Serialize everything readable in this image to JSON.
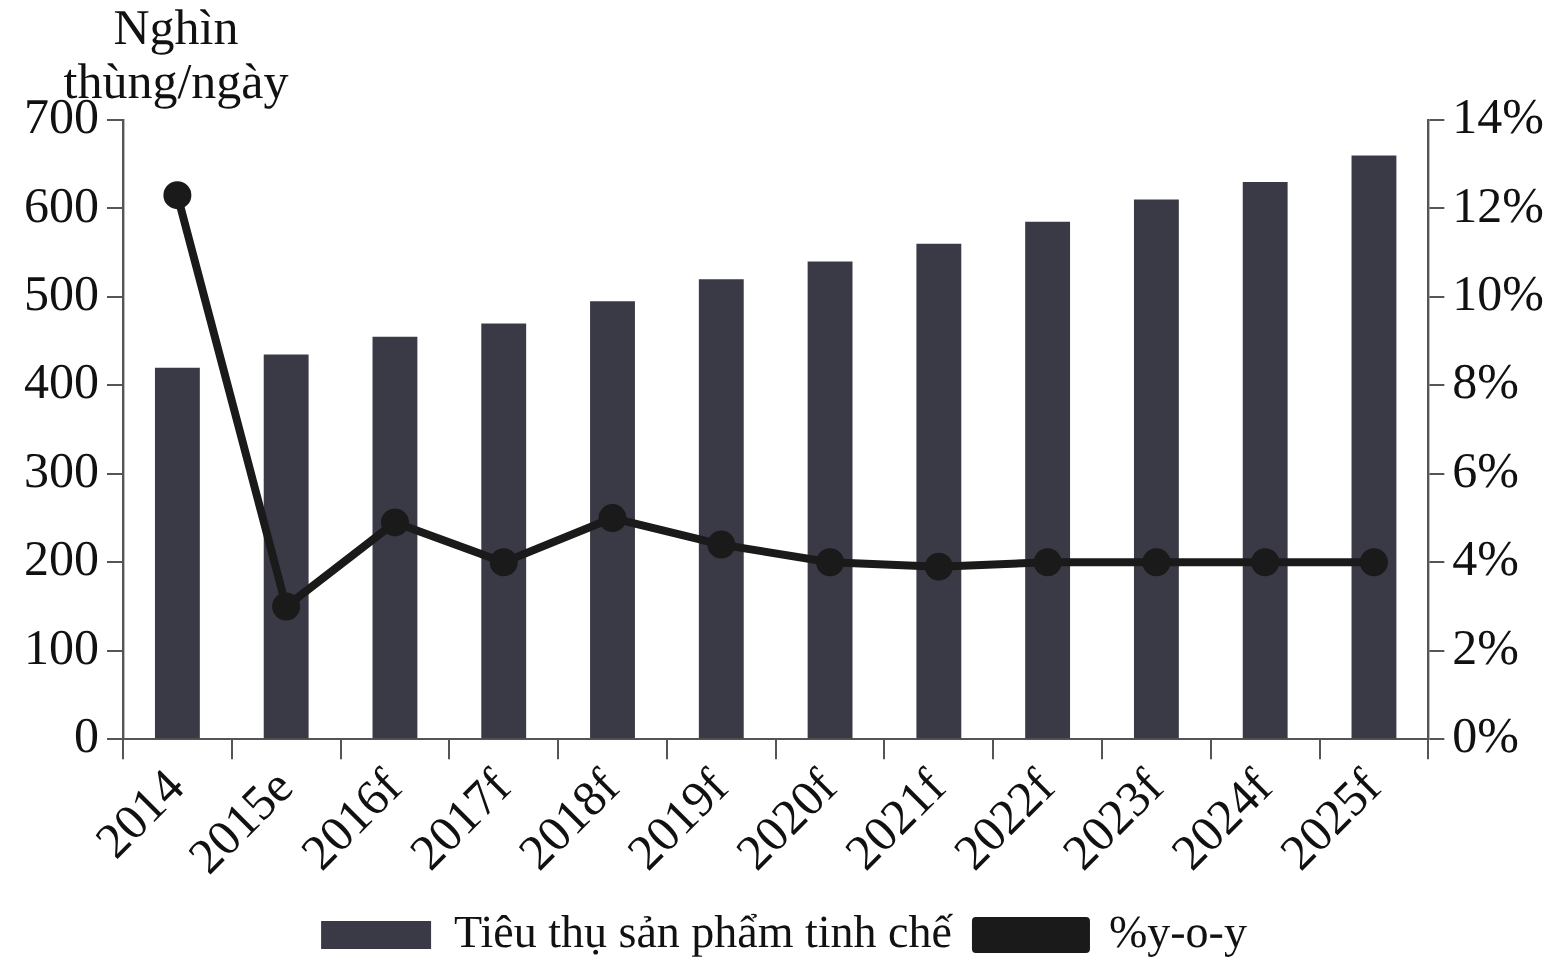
{
  "chart_data": {
    "type": "bar",
    "ylabel": "Nghìn thùng/ngày",
    "categories": [
      "2014",
      "2015e",
      "2016f",
      "2017f",
      "2018f",
      "2019f",
      "2020f",
      "2021f",
      "2022f",
      "2023f",
      "2024f",
      "2025f"
    ],
    "series": [
      {
        "name": "Tiêu thụ sản phẩm tinh chế",
        "color": "#3a3a46",
        "values": [
          420,
          435,
          455,
          470,
          495,
          520,
          540,
          560,
          585,
          610,
          630,
          660
        ]
      },
      {
        "name": "%y-o-y",
        "type": "line",
        "axis": "y2",
        "color": "#1a1a1a",
        "values": [
          12.3,
          3.0,
          4.9,
          4.0,
          5.0,
          4.4,
          4.0,
          3.9,
          4.0,
          4.0,
          4.0,
          4.0
        ]
      }
    ],
    "ylim": [
      0,
      700
    ],
    "yticks": [
      0,
      100,
      200,
      300,
      400,
      500,
      600,
      700
    ],
    "y2lim": [
      0,
      14
    ],
    "y2ticks": [
      {
        "value": 0,
        "label": "0%"
      },
      {
        "value": 2,
        "label": "2%"
      },
      {
        "value": 4,
        "label": "4%"
      },
      {
        "value": 6,
        "label": "6%"
      },
      {
        "value": 8,
        "label": "8%"
      },
      {
        "value": 10,
        "label": "10%"
      },
      {
        "value": 12,
        "label": "12%"
      },
      {
        "value": 14,
        "label": "14%"
      }
    ],
    "grid": false,
    "legend": "bottom",
    "marker": "circle"
  }
}
